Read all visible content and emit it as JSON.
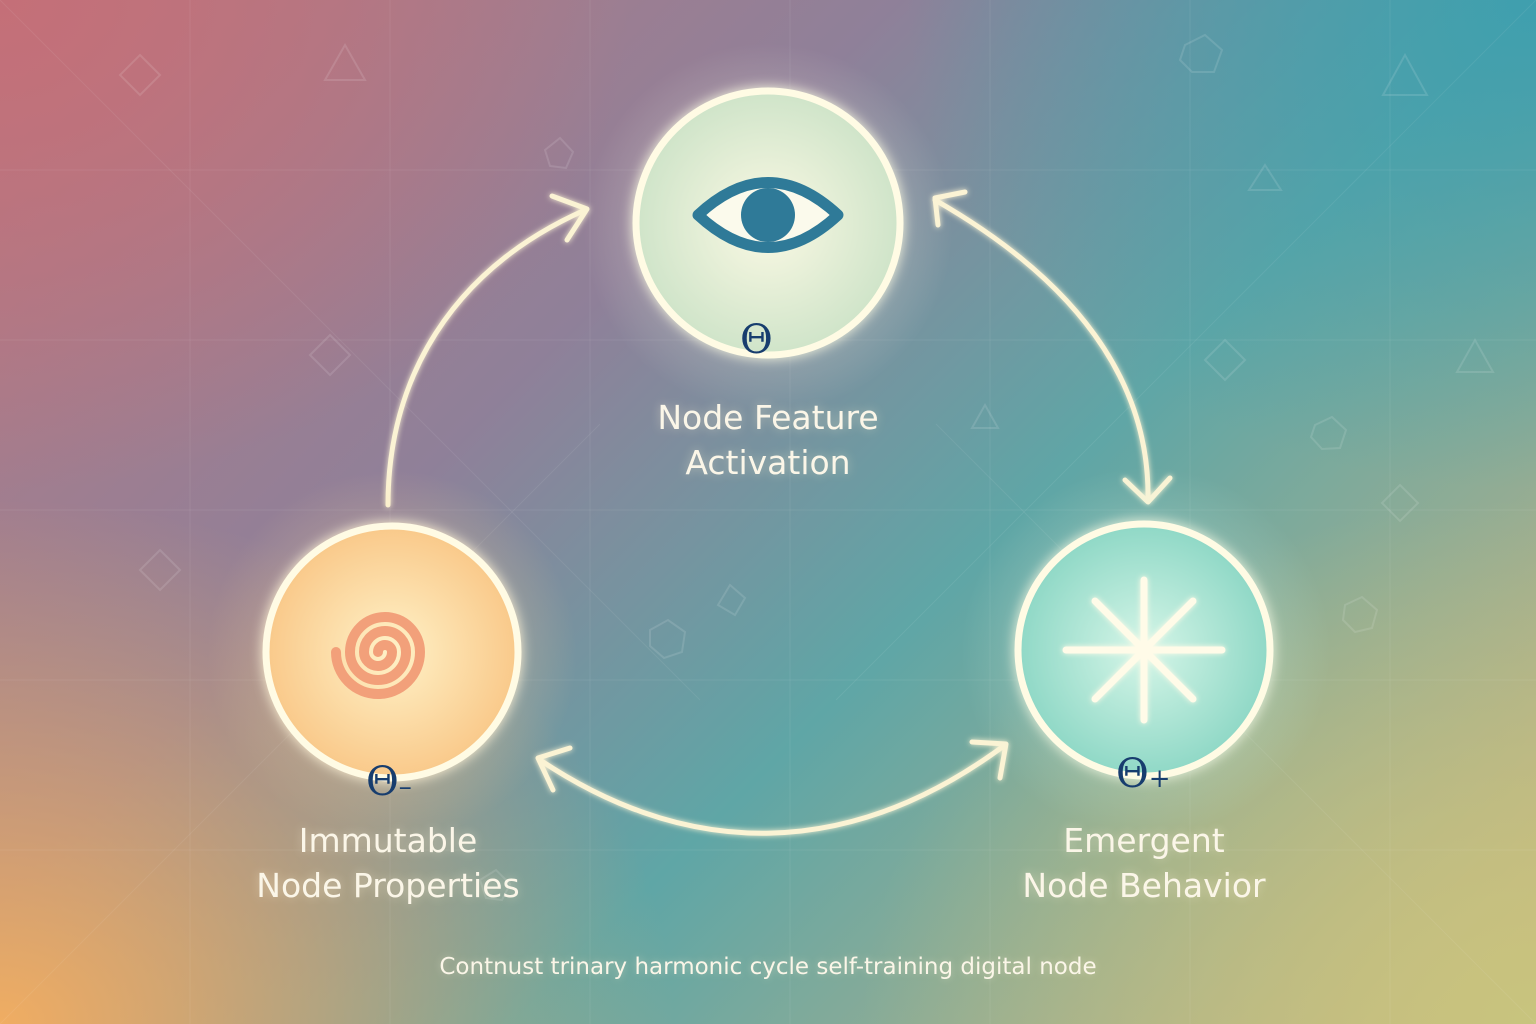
{
  "nodes": [
    {
      "id": "activation",
      "label_line1": "Node Feature",
      "label_line2": "Activation",
      "symbol": "Θ",
      "symbol_suffix": "",
      "icon": "eye-icon",
      "accent": "#2f7a98"
    },
    {
      "id": "immutable",
      "label_line1": "Immutable",
      "label_line2": "Node Properties",
      "symbol": "Θ",
      "symbol_suffix": "–",
      "icon": "spiral-icon",
      "accent": "#f2a07a"
    },
    {
      "id": "emergent",
      "label_line1": "Emergent",
      "label_line2": "Node Behavior",
      "symbol": "Θ",
      "symbol_suffix": "+",
      "icon": "starburst-icon",
      "accent": "#b9eed9"
    }
  ],
  "edges": [
    {
      "from": "immutable",
      "to": "activation",
      "direction": "single"
    },
    {
      "from": "activation",
      "to": "emergent",
      "direction": "double"
    },
    {
      "from": "immutable",
      "to": "emergent",
      "direction": "double"
    }
  ],
  "caption": "Contnust trinary harmonic cycle  self-training digital node",
  "colors": {
    "line": "#fbf3d4",
    "symbol": "#173d6e"
  }
}
